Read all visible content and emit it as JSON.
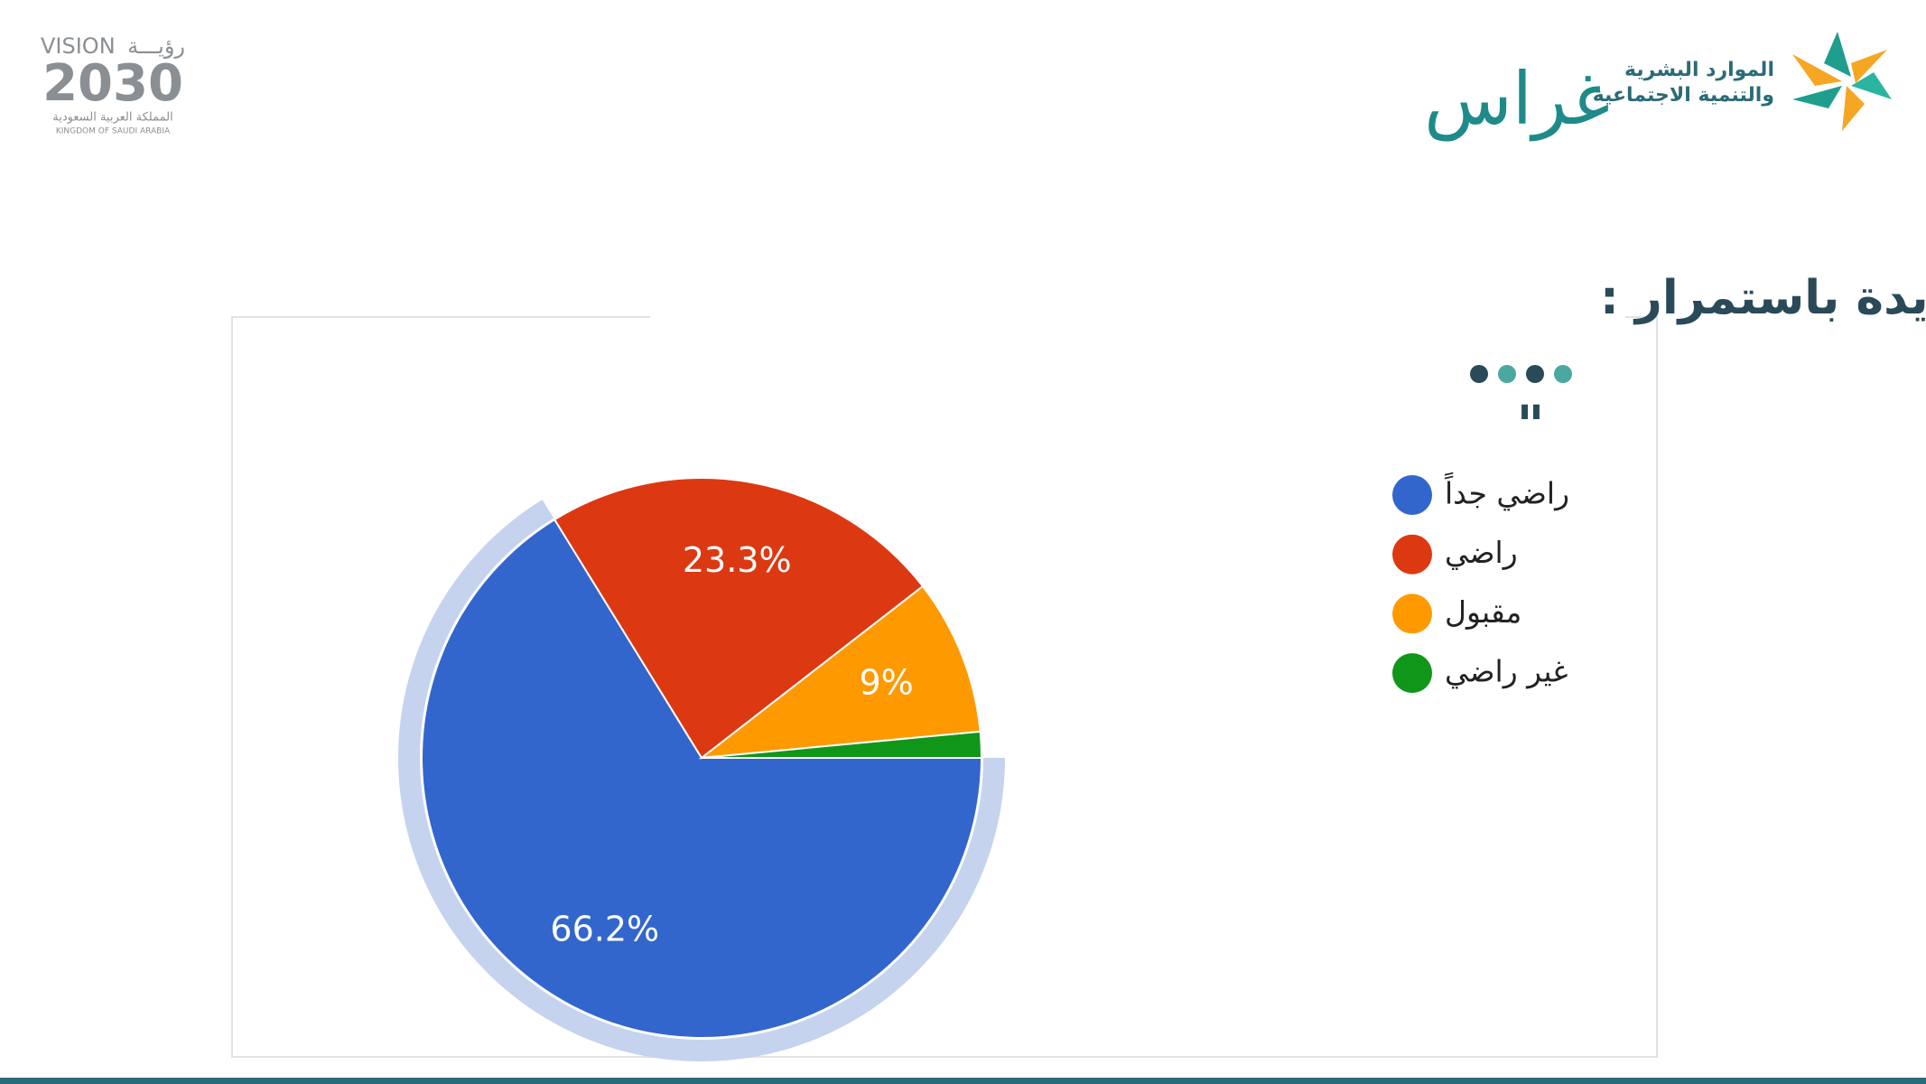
{
  "header": {
    "vision_en": "VISION",
    "vision_ar": "رؤيـــة",
    "vision_year": "2030",
    "kingdom_ar": "المملكة العربية السعودية",
    "kingdom_en": "KINGDOM OF SAUDI ARABIA",
    "ministry_line1": "الموارد البشرية",
    "ministry_line2": "والتنمية الاجتماعية",
    "ghiras": "غراس"
  },
  "chart_data": {
    "type": "pie",
    "title": "تبدع الجمعية وتبتكر خدمات جديدة باستمرار :",
    "categories": [
      "راضي جداً",
      "راضي",
      "مقبول",
      "غير راضي"
    ],
    "values": [
      66.2,
      23.3,
      9,
      1.5
    ],
    "value_labels": [
      "66.2%",
      "23.3%",
      "9%",
      null
    ],
    "colors": [
      "#3366cc",
      "#dc3912",
      "#ff9900",
      "#109618"
    ]
  }
}
